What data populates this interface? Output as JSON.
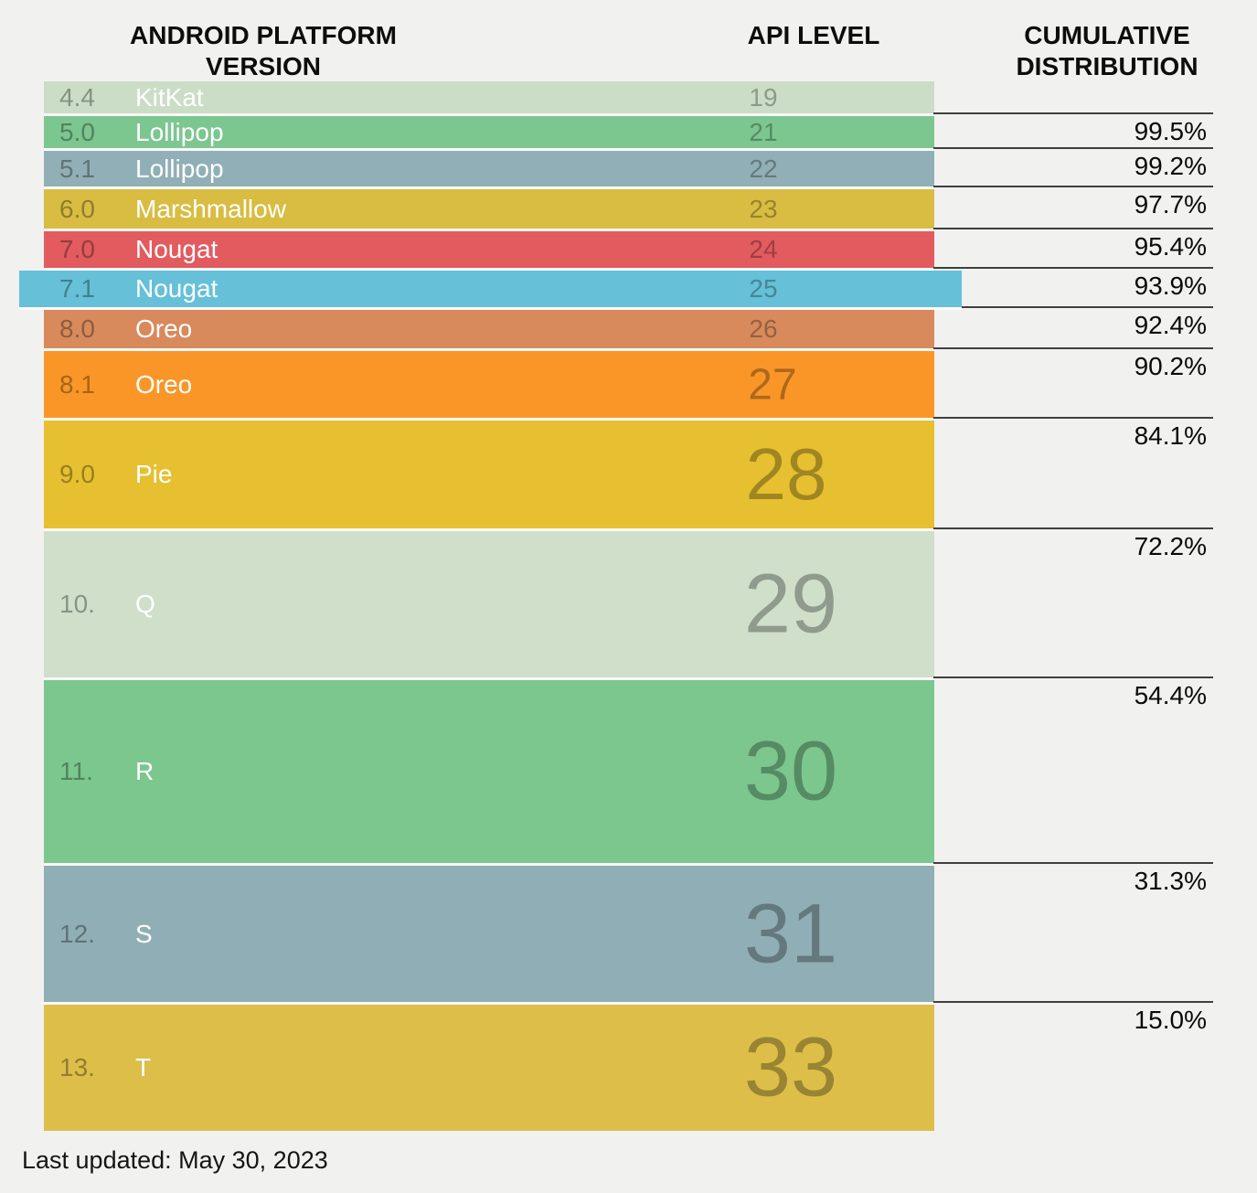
{
  "header": {
    "platform": "ANDROID PLATFORM VERSION",
    "api": "API LEVEL",
    "cumulative": "CUMULATIVE DISTRIBUTION"
  },
  "rows": [
    {
      "version": "4.4",
      "name": "KitKat",
      "api": "19",
      "color": "#cbddc6",
      "cumulative": ""
    },
    {
      "version": "5.0",
      "name": "Lollipop",
      "api": "21",
      "color": "#7cc690",
      "cumulative": "99.5%"
    },
    {
      "version": "5.1",
      "name": "Lollipop",
      "api": "22",
      "color": "#91afb6",
      "cumulative": "99.2%"
    },
    {
      "version": "6.0",
      "name": "Marshmallow",
      "api": "23",
      "color": "#d9bc42",
      "cumulative": "97.7%"
    },
    {
      "version": "7.0",
      "name": "Nougat",
      "api": "24",
      "color": "#e15b5f",
      "cumulative": "95.4%"
    },
    {
      "version": "7.1",
      "name": "Nougat",
      "api": "25",
      "color": "#65c0d8",
      "cumulative": "93.9%",
      "highlighted": true
    },
    {
      "version": "8.0",
      "name": "Oreo",
      "api": "26",
      "color": "#d88a5c",
      "cumulative": "92.4%"
    },
    {
      "version": "8.1",
      "name": "Oreo",
      "api": "27",
      "color": "#fa9627",
      "cumulative": "90.2%"
    },
    {
      "version": "9.0",
      "name": "Pie",
      "api": "28",
      "color": "#e6c030",
      "cumulative": "84.1%"
    },
    {
      "version": "10.",
      "name": "Q",
      "api": "29",
      "color": "#cfdfca",
      "cumulative": "72.2%"
    },
    {
      "version": "11.",
      "name": "R",
      "api": "30",
      "color": "#7bc78e",
      "cumulative": "54.4%"
    },
    {
      "version": "12.",
      "name": "S",
      "api": "31",
      "color": "#90aeb5",
      "cumulative": "31.3%"
    },
    {
      "version": "13.",
      "name": "T",
      "api": "33",
      "color": "#dcbe49",
      "cumulative": "15.0%"
    }
  ],
  "footer": {
    "last_updated": "Last updated: May 30, 2023"
  },
  "chart_data": {
    "type": "table",
    "title": "Android platform version distribution",
    "columns": [
      "Android platform version",
      "API level",
      "Cumulative distribution"
    ],
    "rows": [
      {
        "version": "4.4",
        "codename": "KitKat",
        "api_level": 19,
        "cumulative_pct": null
      },
      {
        "version": "5.0",
        "codename": "Lollipop",
        "api_level": 21,
        "cumulative_pct": 99.5
      },
      {
        "version": "5.1",
        "codename": "Lollipop",
        "api_level": 22,
        "cumulative_pct": 99.2
      },
      {
        "version": "6.0",
        "codename": "Marshmallow",
        "api_level": 23,
        "cumulative_pct": 97.7
      },
      {
        "version": "7.0",
        "codename": "Nougat",
        "api_level": 24,
        "cumulative_pct": 95.4
      },
      {
        "version": "7.1",
        "codename": "Nougat",
        "api_level": 25,
        "cumulative_pct": 93.9
      },
      {
        "version": "8.0",
        "codename": "Oreo",
        "api_level": 26,
        "cumulative_pct": 92.4
      },
      {
        "version": "8.1",
        "codename": "Oreo",
        "api_level": 27,
        "cumulative_pct": 90.2
      },
      {
        "version": "9.0",
        "codename": "Pie",
        "api_level": 28,
        "cumulative_pct": 84.1
      },
      {
        "version": "10.",
        "codename": "Q",
        "api_level": 29,
        "cumulative_pct": 72.2
      },
      {
        "version": "11.",
        "codename": "R",
        "api_level": 30,
        "cumulative_pct": 54.4
      },
      {
        "version": "12.",
        "codename": "S",
        "api_level": 31,
        "cumulative_pct": 31.3
      },
      {
        "version": "13.",
        "codename": "T",
        "api_level": 33,
        "cumulative_pct": 15.0
      }
    ],
    "highlighted_api_level": 25,
    "bar_colors": [
      "#cbddc6",
      "#7cc690",
      "#91afb6",
      "#d9bc42",
      "#e15b5f",
      "#65c0d8",
      "#d88a5c",
      "#fa9627",
      "#e6c030",
      "#cfdfca",
      "#7bc78e",
      "#90aeb5",
      "#dcbe49"
    ],
    "layout_hints": {
      "row_height_proportional_to_share": true,
      "legend": "none",
      "grid": "boundary lines on right column only"
    },
    "last_updated": "May 30, 2023"
  }
}
